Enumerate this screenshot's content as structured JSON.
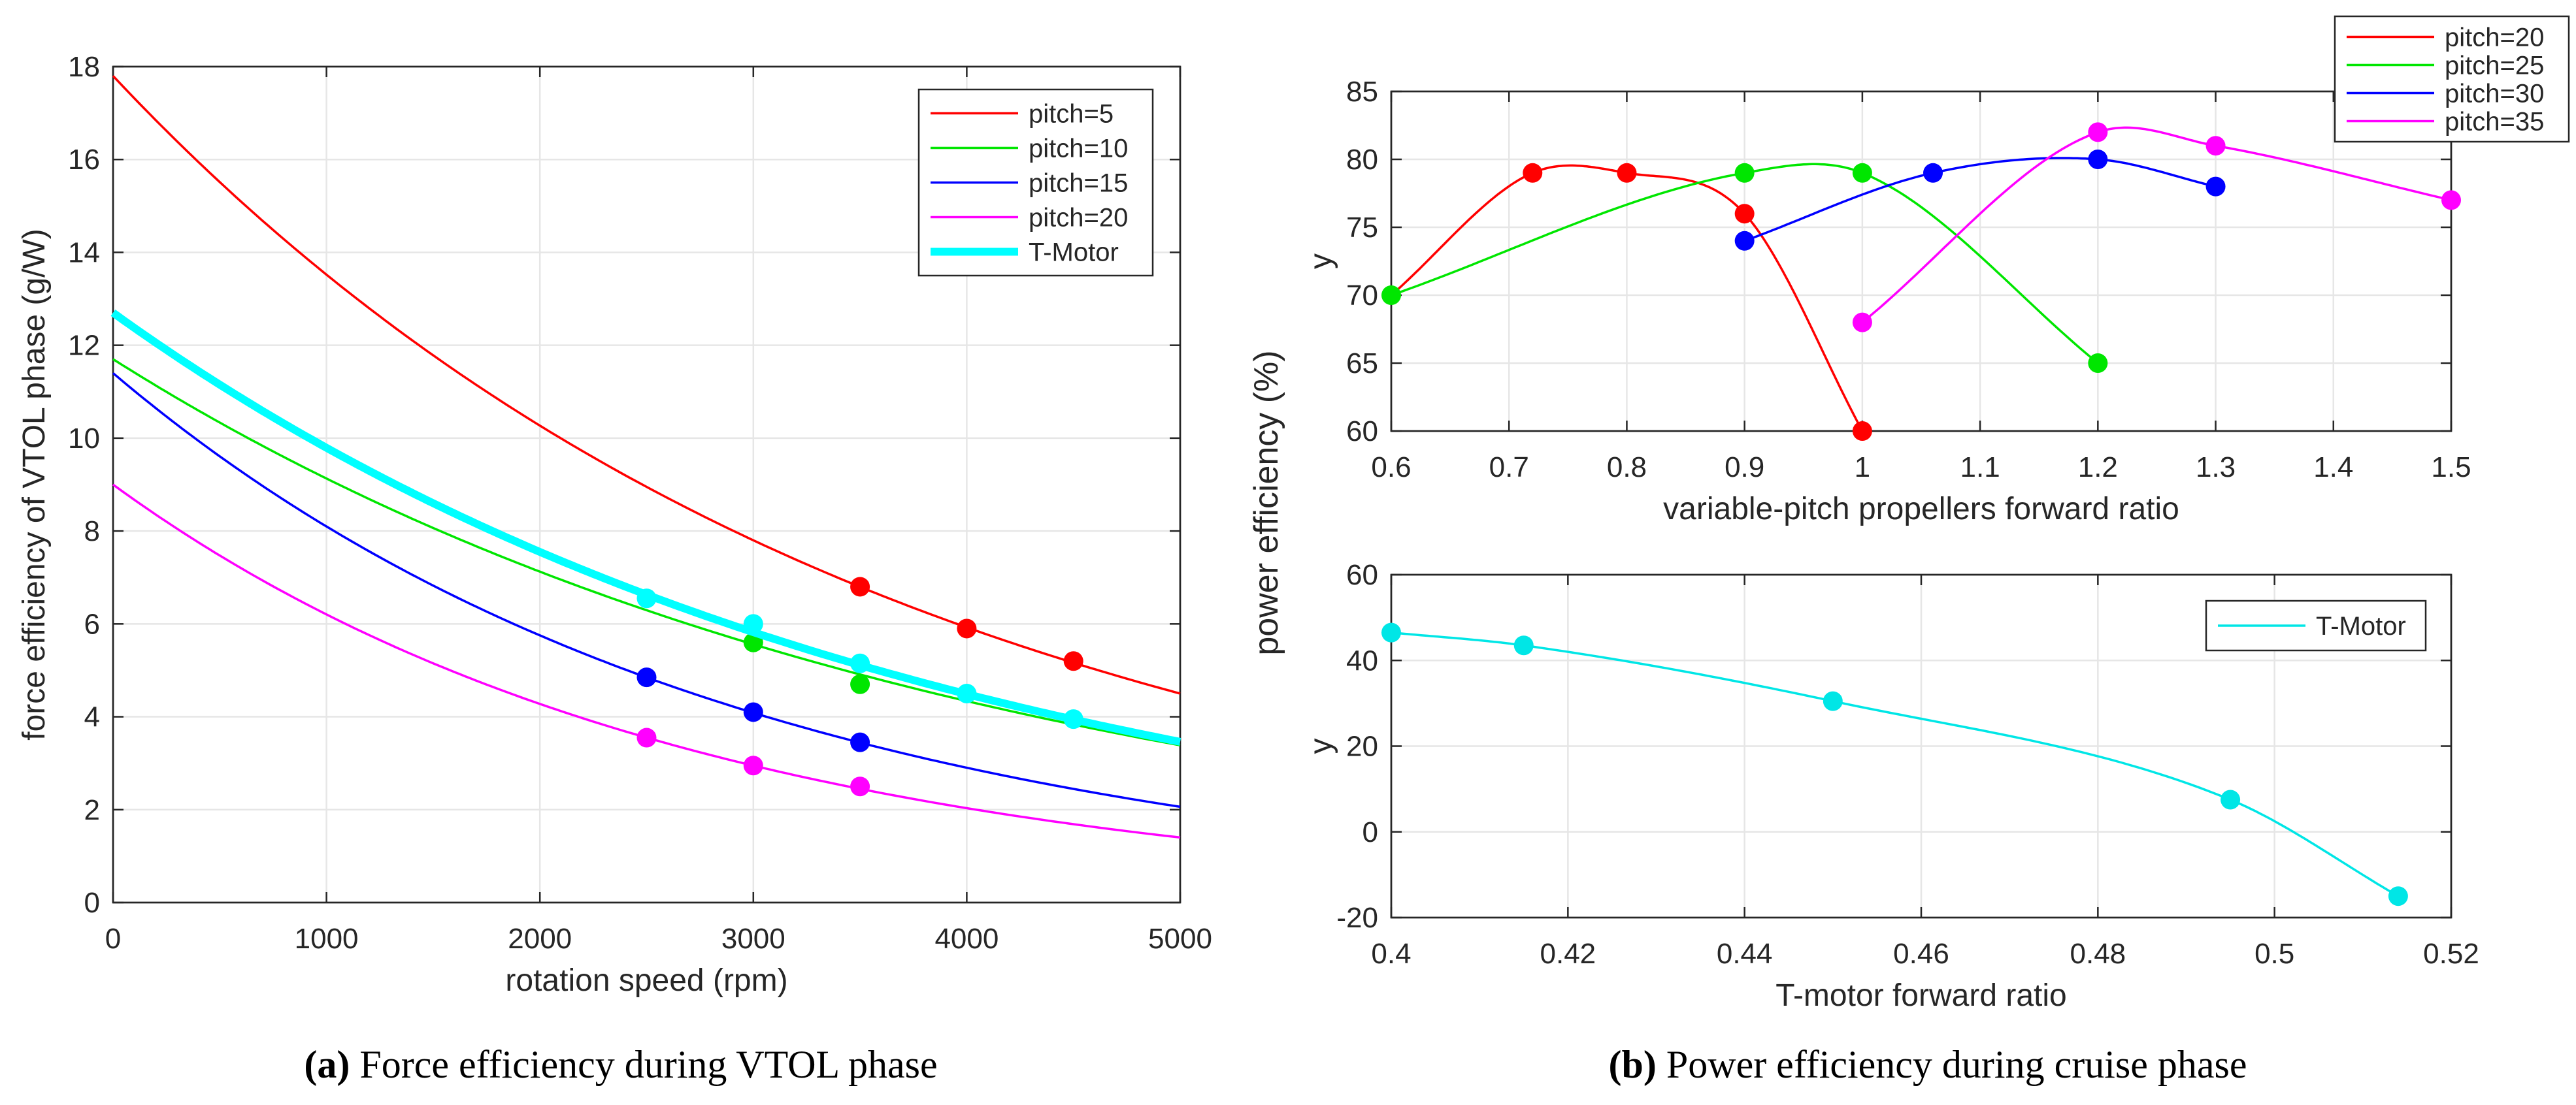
{
  "captions": {
    "a": {
      "label": "(a)",
      "text": " Force efficiency during VTOL phase"
    },
    "b": {
      "label": "(b)",
      "text": " Power efficiency during cruise phase"
    }
  },
  "shared_labels": {
    "power_efficiency_ylabel": "power efficiency (%)"
  },
  "chart_data": [
    {
      "id": "a",
      "type": "line",
      "title": "",
      "xlabel": "rotation speed (rpm)",
      "ylabel": "force efficiency of VTOL phase (g/W)",
      "xlim": [
        0,
        5000
      ],
      "ylim": [
        0,
        18
      ],
      "xticks": [
        0,
        1000,
        2000,
        3000,
        4000,
        5000
      ],
      "yticks": [
        0,
        2,
        4,
        6,
        8,
        10,
        12,
        14,
        16,
        18
      ],
      "grid": true,
      "legend_position": "top-right",
      "series": [
        {
          "name": "pitch=5",
          "color": "#ff0000",
          "bold": false,
          "curve": {
            "form": "exponential",
            "y0": 17.8,
            "rate": 0.000275
          },
          "points": [
            {
              "x": 3500,
              "y": 6.8
            },
            {
              "x": 4000,
              "y": 5.9
            },
            {
              "x": 4500,
              "y": 5.2
            }
          ]
        },
        {
          "name": "pitch=10",
          "color": "#00e600",
          "bold": false,
          "curve": {
            "form": "exponential",
            "y0": 11.7,
            "rate": 0.000248
          },
          "points": [
            {
              "x": 3000,
              "y": 5.6
            },
            {
              "x": 3500,
              "y": 4.7
            }
          ]
        },
        {
          "name": "pitch=15",
          "color": "#0000ff",
          "bold": false,
          "curve": {
            "form": "exponential",
            "y0": 11.4,
            "rate": 0.000342
          },
          "points": [
            {
              "x": 2500,
              "y": 4.85
            },
            {
              "x": 3000,
              "y": 4.1
            },
            {
              "x": 3500,
              "y": 3.45
            }
          ]
        },
        {
          "name": "pitch=20",
          "color": "#ff00ff",
          "bold": false,
          "curve": {
            "form": "exponential",
            "y0": 9.0,
            "rate": 0.000372
          },
          "points": [
            {
              "x": 2500,
              "y": 3.55
            },
            {
              "x": 3000,
              "y": 2.95
            },
            {
              "x": 3500,
              "y": 2.5
            }
          ]
        },
        {
          "name": "T-Motor",
          "color": "#00ffff",
          "bold": true,
          "curve": {
            "form": "exponential",
            "y0": 12.7,
            "rate": 0.00026
          },
          "points": [
            {
              "x": 2500,
              "y": 6.55
            },
            {
              "x": 3000,
              "y": 6.0
            },
            {
              "x": 3500,
              "y": 5.15
            },
            {
              "x": 4000,
              "y": 4.5
            },
            {
              "x": 4500,
              "y": 3.95
            }
          ]
        }
      ]
    },
    {
      "id": "b-top",
      "type": "line",
      "title": "",
      "xlabel": "variable-pitch propellers forward ratio",
      "ylabel": "y",
      "xlim": [
        0.6,
        1.5
      ],
      "ylim": [
        60,
        85
      ],
      "xticks": [
        0.6,
        0.7,
        0.8,
        0.9,
        1,
        1.1,
        1.2,
        1.3,
        1.4,
        1.5
      ],
      "yticks": [
        60,
        65,
        70,
        75,
        80,
        85
      ],
      "grid": true,
      "legend_position": "outside-top-right",
      "series": [
        {
          "name": "pitch=20",
          "color": "#ff0000",
          "curve": {
            "form": "spline",
            "points": [
              {
                "x": 0.6,
                "y": 70
              },
              {
                "x": 0.72,
                "y": 79
              },
              {
                "x": 0.8,
                "y": 79
              },
              {
                "x": 0.9,
                "y": 76
              },
              {
                "x": 1.0,
                "y": 60
              }
            ]
          },
          "points": [
            {
              "x": 0.72,
              "y": 79
            },
            {
              "x": 0.8,
              "y": 79
            },
            {
              "x": 0.9,
              "y": 76
            },
            {
              "x": 1.0,
              "y": 60
            }
          ]
        },
        {
          "name": "pitch=25",
          "color": "#00e600",
          "curve": {
            "form": "spline",
            "points": [
              {
                "x": 0.6,
                "y": 70
              },
              {
                "x": 0.9,
                "y": 79
              },
              {
                "x": 1.0,
                "y": 79
              },
              {
                "x": 1.2,
                "y": 65
              }
            ]
          },
          "points": [
            {
              "x": 0.6,
              "y": 70
            },
            {
              "x": 0.9,
              "y": 79
            },
            {
              "x": 1.0,
              "y": 79
            },
            {
              "x": 1.2,
              "y": 65
            }
          ]
        },
        {
          "name": "pitch=30",
          "color": "#0000ff",
          "curve": {
            "form": "spline",
            "points": [
              {
                "x": 0.9,
                "y": 74
              },
              {
                "x": 1.06,
                "y": 79
              },
              {
                "x": 1.2,
                "y": 80
              },
              {
                "x": 1.3,
                "y": 78
              }
            ]
          },
          "points": [
            {
              "x": 0.9,
              "y": 74
            },
            {
              "x": 1.06,
              "y": 79
            },
            {
              "x": 1.2,
              "y": 80
            },
            {
              "x": 1.3,
              "y": 78
            }
          ]
        },
        {
          "name": "pitch=35",
          "color": "#ff00ff",
          "curve": {
            "form": "spline",
            "points": [
              {
                "x": 1.0,
                "y": 68
              },
              {
                "x": 1.2,
                "y": 82
              },
              {
                "x": 1.3,
                "y": 81
              },
              {
                "x": 1.5,
                "y": 77
              }
            ]
          },
          "points": [
            {
              "x": 1.0,
              "y": 68
            },
            {
              "x": 1.2,
              "y": 82
            },
            {
              "x": 1.3,
              "y": 81
            },
            {
              "x": 1.5,
              "y": 77
            }
          ]
        }
      ]
    },
    {
      "id": "b-bottom",
      "type": "line",
      "title": "",
      "xlabel": "T-motor forward ratio",
      "ylabel": "y",
      "xlim": [
        0.4,
        0.52
      ],
      "ylim": [
        -20,
        60
      ],
      "xticks": [
        0.4,
        0.42,
        0.44,
        0.46,
        0.48,
        0.5,
        0.52
      ],
      "yticks": [
        -20,
        0,
        20,
        40,
        60
      ],
      "grid": true,
      "legend_position": "top-right",
      "series": [
        {
          "name": "T-Motor",
          "color": "#00e6e6",
          "curve": {
            "form": "spline",
            "points": [
              {
                "x": 0.4,
                "y": 46.5
              },
              {
                "x": 0.415,
                "y": 43.5
              },
              {
                "x": 0.45,
                "y": 30.5
              },
              {
                "x": 0.495,
                "y": 7.5
              },
              {
                "x": 0.514,
                "y": -15
              }
            ]
          },
          "points": [
            {
              "x": 0.4,
              "y": 46.5
            },
            {
              "x": 0.415,
              "y": 43.5
            },
            {
              "x": 0.45,
              "y": 30.5
            },
            {
              "x": 0.495,
              "y": 7.5
            },
            {
              "x": 0.514,
              "y": -15
            }
          ]
        }
      ]
    }
  ]
}
